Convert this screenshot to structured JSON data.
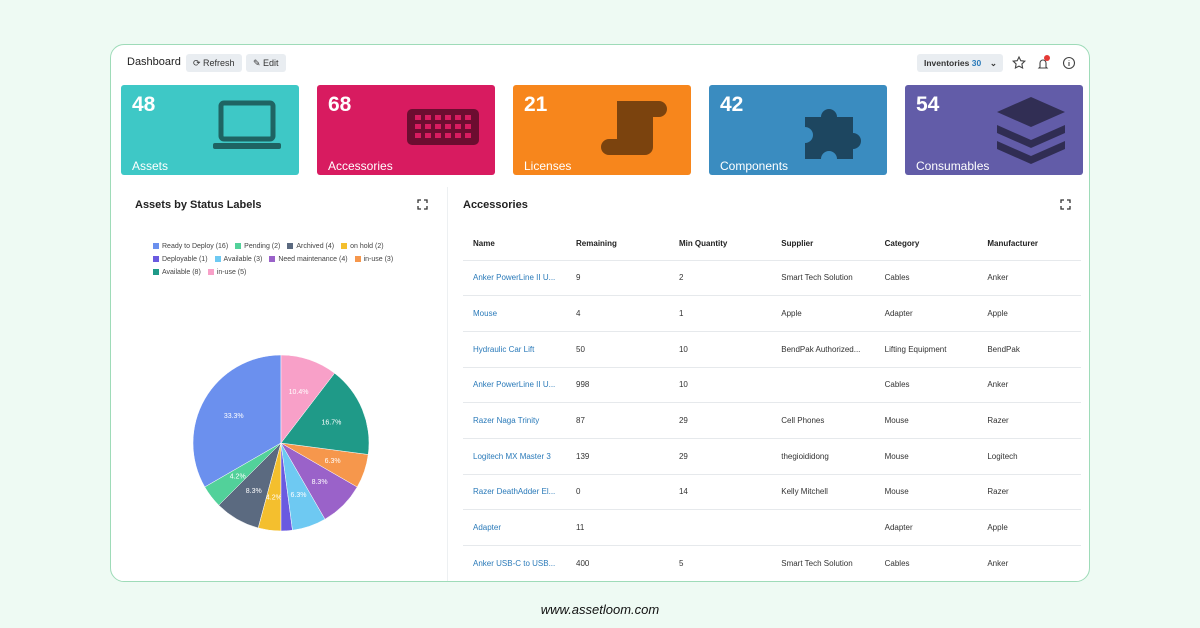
{
  "header": {
    "title": "Dashboard",
    "refresh": "Refresh",
    "edit": "Edit",
    "inventories_label": "Inventories",
    "inventories_count": 30
  },
  "tiles": [
    {
      "count": 48,
      "label": "Assets",
      "color": "#3ec8c6"
    },
    {
      "count": 68,
      "label": "Accessories",
      "color": "#d81b60"
    },
    {
      "count": 21,
      "label": "Licenses",
      "color": "#f7861c"
    },
    {
      "count": 42,
      "label": "Components",
      "color": "#3a8cc0"
    },
    {
      "count": 54,
      "label": "Consumables",
      "color": "#625ca8"
    }
  ],
  "status_chart": {
    "type": "pie",
    "title": "Assets by Status Labels",
    "series": [
      {
        "label": "Ready to Deploy (16)",
        "value": 16,
        "pct_label": "33.3%",
        "color": "#6b90ee"
      },
      {
        "label": "Pending (2)",
        "value": 2,
        "pct_label": "4.2%",
        "color": "#52d19a"
      },
      {
        "label": "Archived (4)",
        "value": 4,
        "pct_label": "8.3%",
        "color": "#5b6a80"
      },
      {
        "label": "on hold (2)",
        "value": 2,
        "pct_label": "4.2%",
        "color": "#f4bf2e"
      },
      {
        "label": "Deployable (1)",
        "value": 1,
        "color": "#6a5ae0"
      },
      {
        "label": "Available (3)",
        "value": 3,
        "pct_label": "6.3%",
        "color": "#6ec9f2"
      },
      {
        "label": "Need maintenance (4)",
        "value": 4,
        "pct_label": "8.3%",
        "color": "#9a62c9"
      },
      {
        "label": "in-use (3)",
        "value": 3,
        "pct_label": "6.3%",
        "color": "#f6974c"
      },
      {
        "label": "Available (8)",
        "value": 8,
        "pct_label": "16.7%",
        "color": "#1f9a88"
      },
      {
        "label": "in-use (5)",
        "value": 5,
        "pct_label": "10.4%",
        "color": "#f8a0c8"
      }
    ]
  },
  "accessories": {
    "title": "Accessories",
    "columns": [
      "Name",
      "Remaining",
      "Min Quantity",
      "Supplier",
      "Category",
      "Manufacturer"
    ],
    "rows": [
      [
        "Anker PowerLine II U...",
        9,
        2,
        "Smart Tech Solution",
        "Cables",
        "Anker"
      ],
      [
        "Mouse",
        4,
        1,
        "Apple",
        "Adapter",
        "Apple"
      ],
      [
        "Hydraulic Car Lift",
        50,
        10,
        "BendPak Authorized...",
        "Lifting Equipment",
        "BendPak"
      ],
      [
        "Anker PowerLine II U...",
        998,
        10,
        null,
        "Cables",
        "Anker"
      ],
      [
        "Razer Naga Trinity",
        87,
        29,
        "Cell Phones",
        "Mouse",
        "Razer"
      ],
      [
        "Logitech MX Master 3",
        139,
        29,
        "thegioididong",
        "Mouse",
        "Logitech"
      ],
      [
        "Razer DeathAdder El...",
        0,
        14,
        "Kelly Mitchell",
        "Mouse",
        "Razer"
      ],
      [
        "Adapter",
        11,
        null,
        null,
        "Adapter",
        "Apple"
      ],
      [
        "Anker USB-C to USB...",
        400,
        5,
        "Smart Tech Solution",
        "Cables",
        "Anker"
      ]
    ]
  },
  "footer": "www.assetloom.com"
}
